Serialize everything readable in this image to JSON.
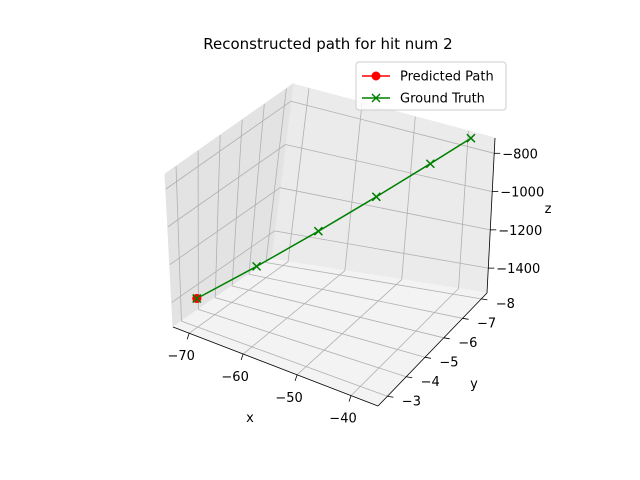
{
  "chart_data": {
    "type": "line",
    "projection": "3d",
    "title": "Reconstructed path for hit num 2",
    "xlabel": "x",
    "ylabel": "y",
    "zlabel": "z",
    "x_ticks": [
      "−70",
      "−60",
      "−50",
      "−40"
    ],
    "y_ticks": [
      "−8",
      "−7",
      "−6",
      "−5",
      "−4",
      "−3"
    ],
    "z_ticks": [
      "−1400",
      "−1200",
      "−1000",
      "−800"
    ],
    "xlim": [
      -73,
      -35
    ],
    "ylim": [
      -8.3,
      -2.5
    ],
    "zlim": [
      -1530,
      -720
    ],
    "grid": true,
    "legend_position": "top-right",
    "series": [
      {
        "name": "Predicted Path",
        "color": "#ff0000",
        "marker": "circle",
        "points": [
          [
            -72.0,
            -3.6,
            -1440.0
          ]
        ]
      },
      {
        "name": "Ground Truth",
        "color": "#008000",
        "marker": "x",
        "points": [
          [
            -72.0,
            -3.6,
            -1440.0
          ],
          [
            -64.1,
            -4.5,
            -1265.0
          ],
          [
            -56.2,
            -5.4,
            -1090.0
          ],
          [
            -48.8,
            -6.2,
            -925.0
          ],
          [
            -42.1,
            -7.0,
            -778.0
          ],
          [
            -37.0,
            -7.6,
            -665.0
          ]
        ]
      }
    ]
  }
}
